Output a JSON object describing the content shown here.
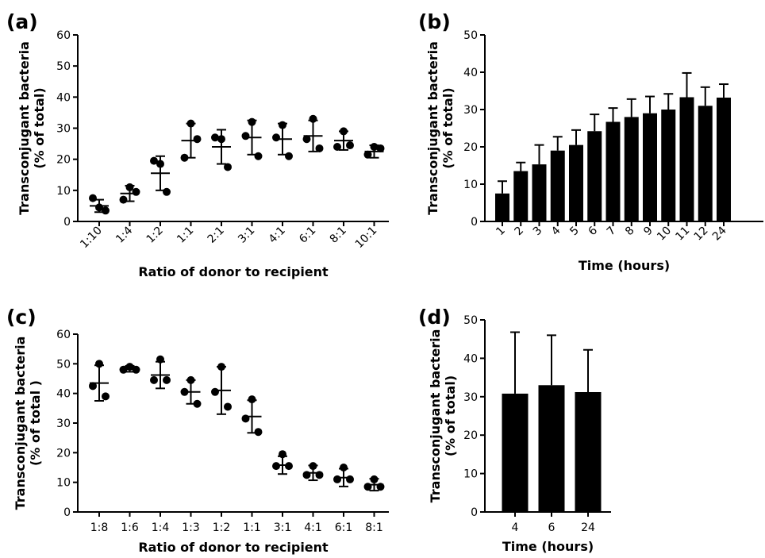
{
  "chart_data": [
    {
      "panel": "(a)",
      "type": "scatter",
      "categories": [
        "1:10",
        "1:4",
        "1:2",
        "1:1",
        "2:1",
        "3:1",
        "4:1",
        "6:1",
        "8:1",
        "10:1"
      ],
      "points": [
        [
          4.5,
          7.5,
          3.5
        ],
        [
          11,
          7,
          9.5
        ],
        [
          18.5,
          19.5,
          9.5
        ],
        [
          31.5,
          20.5,
          26.5
        ],
        [
          26.5,
          27,
          17.5
        ],
        [
          32,
          27.5,
          21
        ],
        [
          31,
          27,
          21
        ],
        [
          33,
          26.5,
          23.5
        ],
        [
          29,
          24,
          24.5
        ],
        [
          24,
          21.5,
          23.5
        ]
      ],
      "means": [
        5,
        9,
        15.5,
        26,
        24,
        27,
        26.5,
        27.5,
        26,
        22.5
      ],
      "err": [
        2,
        2.5,
        5.5,
        5.5,
        5.5,
        5.5,
        5,
        5,
        3,
        2
      ],
      "xlabel": "Ratio of donor to recipient",
      "ylabel": [
        "Transconjugant bacteria",
        "(% of total)"
      ],
      "ylim": [
        0,
        60
      ],
      "yticks": [
        0,
        10,
        20,
        30,
        40,
        50,
        60
      ],
      "grid": false
    },
    {
      "panel": "(b)",
      "type": "bar",
      "categories": [
        "1",
        "2",
        "3",
        "4",
        "5",
        "6",
        "7",
        "8",
        "9",
        "10",
        "11",
        "12",
        "24"
      ],
      "values": [
        7.5,
        13.5,
        15.3,
        19,
        20.5,
        24.2,
        26.7,
        28,
        29,
        30,
        33.3,
        31,
        33.2
      ],
      "err": [
        3.3,
        2.3,
        5.2,
        3.7,
        4,
        4.5,
        3.7,
        4.8,
        4.5,
        4.2,
        6.5,
        5,
        3.6
      ],
      "xlabel": "Time (hours)",
      "ylabel": [
        "Transconjugant bacteria",
        "(% of total)"
      ],
      "ylim": [
        0,
        50
      ],
      "yticks": [
        0,
        10,
        20,
        30,
        40,
        50
      ],
      "grid": false
    },
    {
      "panel": "(c)",
      "type": "scatter",
      "categories": [
        "1:8",
        "1:6",
        "1:4",
        "1:3",
        "1:2",
        "1:1",
        "3:1",
        "4:1",
        "6:1",
        "8:1"
      ],
      "points": [
        [
          50,
          42.5,
          39
        ],
        [
          49,
          48,
          48
        ],
        [
          51.5,
          44.5,
          44.5
        ],
        [
          44.5,
          40.5,
          36.5
        ],
        [
          49,
          40.5,
          35.5
        ],
        [
          38,
          31.5,
          27
        ],
        [
          19.5,
          15.5,
          15.5
        ],
        [
          15.5,
          12.5,
          12.5
        ],
        [
          15,
          11,
          11
        ],
        [
          11,
          8.5,
          8.5
        ]
      ],
      "means": [
        43.5,
        48.3,
        46.2,
        40.5,
        41,
        32.2,
        15.8,
        13.2,
        11.6,
        9.2
      ],
      "err": [
        6,
        1,
        4.5,
        4,
        8,
        5.5,
        3,
        2.5,
        3,
        2
      ],
      "xlabel": "Ratio of donor to recipient",
      "ylabel": [
        "Transconjugant bacteria",
        "(% of total )"
      ],
      "ylim": [
        0,
        60
      ],
      "yticks": [
        0,
        10,
        20,
        30,
        40,
        50,
        60
      ],
      "grid": false
    },
    {
      "panel": "(d)",
      "type": "bar",
      "categories": [
        "4",
        "6",
        "24"
      ],
      "values": [
        30.8,
        33,
        31.2
      ],
      "err": [
        16,
        13,
        11
      ],
      "xlabel": "Time (hours)",
      "ylabel": [
        "Transconjugant bacteria",
        "(% of total)"
      ],
      "ylim": [
        0,
        50
      ],
      "yticks": [
        0,
        10,
        20,
        30,
        40,
        50
      ],
      "grid": false
    }
  ]
}
